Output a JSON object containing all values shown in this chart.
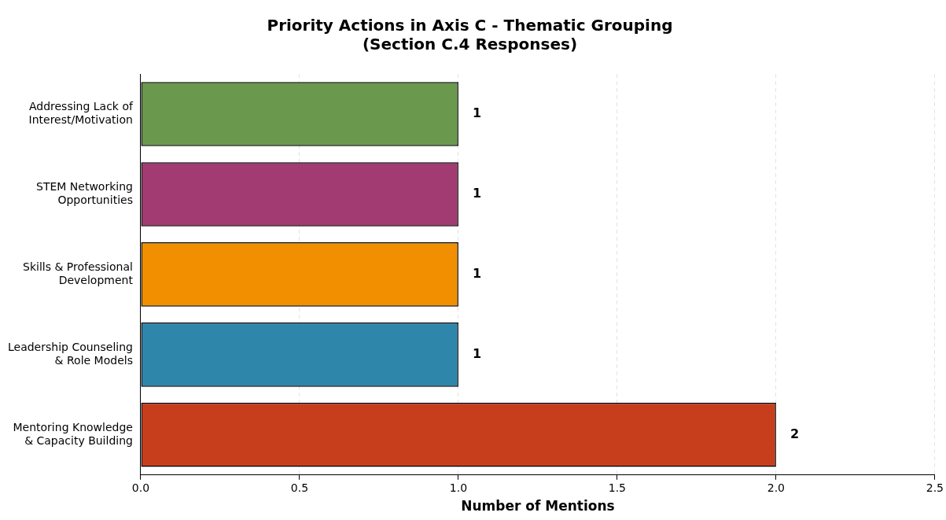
{
  "chart_data": {
    "type": "bar",
    "orientation": "horizontal",
    "title": "Priority Actions in Axis C - Thematic Grouping\n(Section C.4 Responses)",
    "xlabel": "Number of Mentions",
    "categories": [
      "Addressing Lack of\nInterest/Motivation",
      "STEM Networking\nOpportunities",
      "Skills & Professional\nDevelopment",
      "Leadership Counseling\n& Role Models",
      "Mentoring Knowledge\n& Capacity Building"
    ],
    "values": [
      1,
      1,
      1,
      1,
      2
    ],
    "colors": [
      "#6a994e",
      "#a23b72",
      "#f18f01",
      "#2e86ab",
      "#c73e1d"
    ],
    "xlim": [
      0,
      2.5
    ],
    "xticks": [
      {
        "value": 0,
        "label": "0.0"
      },
      {
        "value": 0.5,
        "label": "0.5"
      },
      {
        "value": 1,
        "label": "1.0"
      },
      {
        "value": 1.5,
        "label": "1.5"
      },
      {
        "value": 2,
        "label": "2.0"
      },
      {
        "value": 2.5,
        "label": "2.5"
      }
    ],
    "grid": "x",
    "data_labels": true,
    "legend": false
  }
}
